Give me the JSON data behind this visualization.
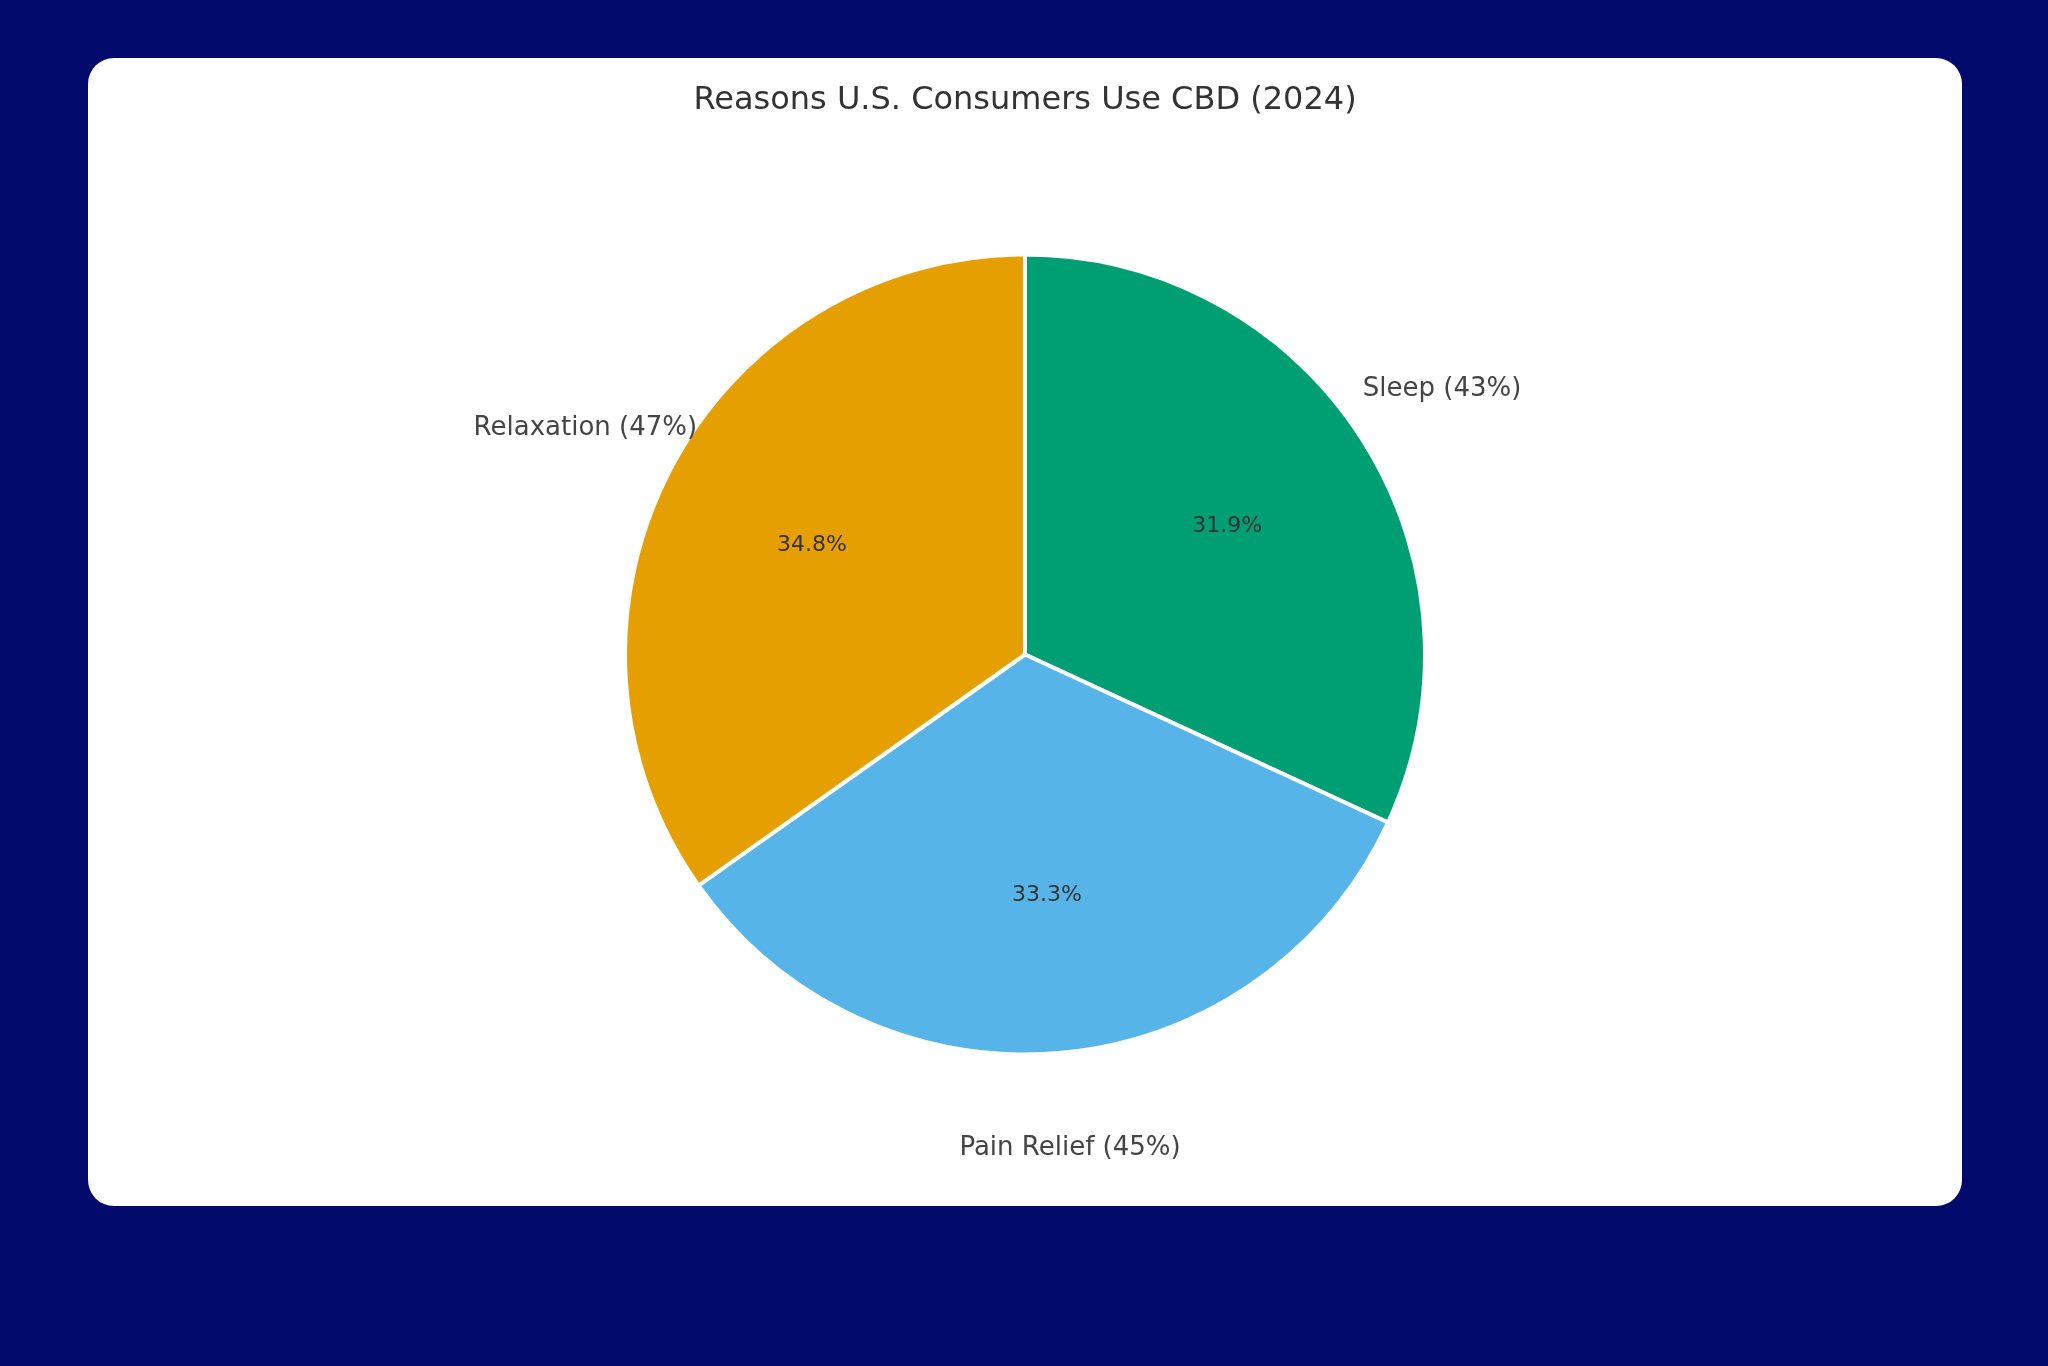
{
  "chart_data": {
    "type": "pie",
    "title": "Reasons U.S. Consumers Use CBD (2024)",
    "categories": [
      "Sleep (43%)",
      "Pain Relief (45%)",
      "Relaxation (47%)"
    ],
    "values": [
      31.9,
      33.3,
      34.8
    ],
    "colors": [
      "#009e73",
      "#56b4e9",
      "#e69f00"
    ],
    "value_labels": [
      "31.9%",
      "33.3%",
      "34.8%"
    ]
  }
}
